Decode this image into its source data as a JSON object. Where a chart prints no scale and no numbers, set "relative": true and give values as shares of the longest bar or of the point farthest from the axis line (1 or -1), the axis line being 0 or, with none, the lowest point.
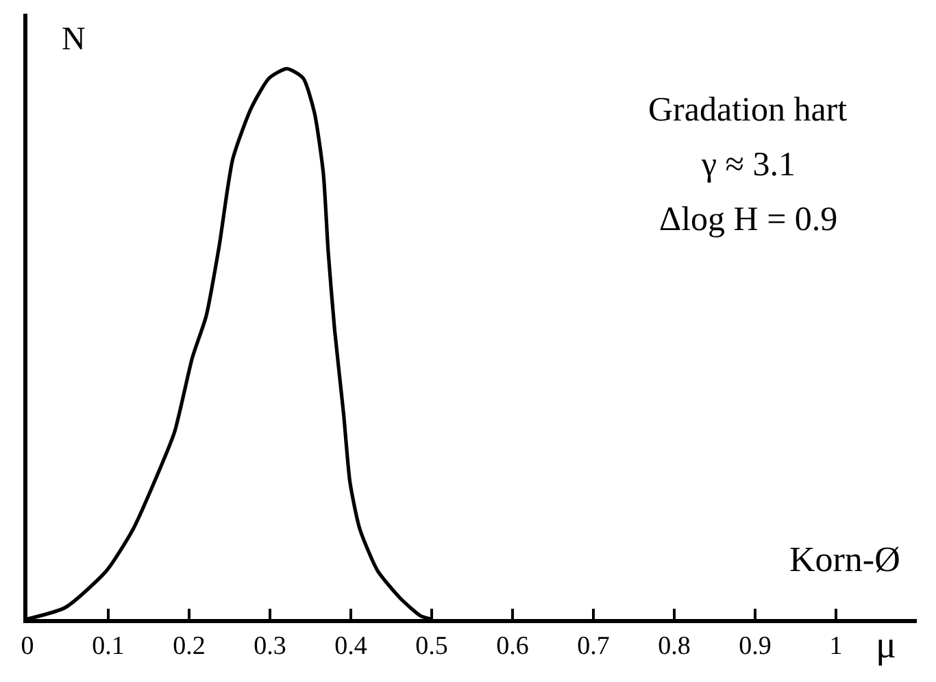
{
  "chart_data": {
    "type": "line",
    "relative": true,
    "xlabel": "Korn-Ø",
    "ylabel": "N",
    "annotations": [
      "Gradation hart",
      "γ ≈ 3.1",
      "Δlog H = 0.9",
      "μ"
    ],
    "xlim": [
      0,
      1.1
    ],
    "xticks": [
      0,
      0.1,
      0.2,
      0.3,
      0.4,
      0.5,
      0.6,
      0.7,
      0.8,
      0.9,
      1
    ],
    "marker": "none",
    "line_style": "solid",
    "series": [
      {
        "color": "#000000",
        "x": [
          0,
          0.047,
          0.098,
          0.131,
          0.159,
          0.182,
          0.204,
          0.221,
          0.237,
          0.254,
          0.277,
          0.299,
          0.321,
          0.341,
          0.355,
          0.366,
          0.372,
          0.38,
          0.391,
          0.399,
          0.411,
          0.433,
          0.461,
          0.486,
          0.499
        ],
        "values": [
          0,
          0.021,
          0.088,
          0.164,
          0.256,
          0.34,
          0.475,
          0.55,
          0.676,
          0.836,
          0.929,
          0.983,
          1,
          0.983,
          0.92,
          0.81,
          0.668,
          0.525,
          0.374,
          0.248,
          0.164,
          0.088,
          0.038,
          0.006,
          0
        ]
      }
    ]
  }
}
